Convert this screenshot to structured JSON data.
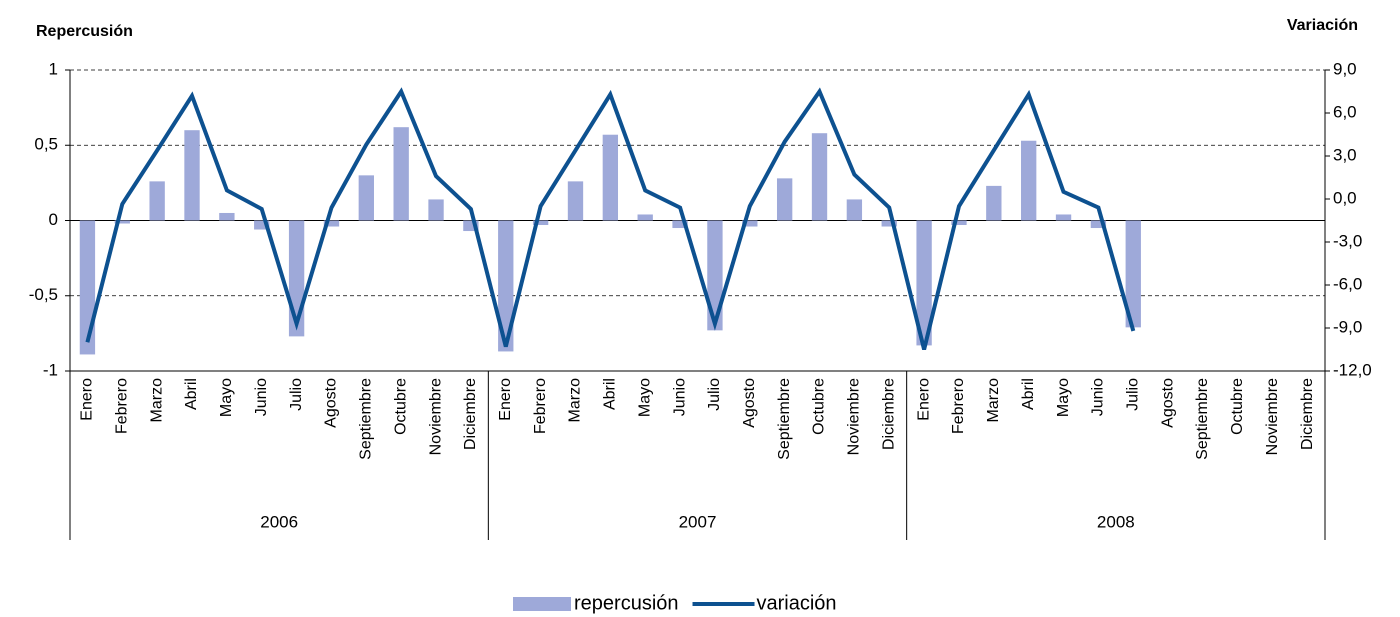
{
  "chart_data": {
    "type": "combo",
    "y_title": "Repercusión",
    "y2_title": "Variación",
    "categories": [
      "Enero",
      "Febrero",
      "Marzo",
      "Abril",
      "Mayo",
      "Junio",
      "Julio",
      "Agosto",
      "Septiembre",
      "Octubre",
      "Noviembre",
      "Diciembre",
      "Enero",
      "Febrero",
      "Marzo",
      "Abril",
      "Mayo",
      "Junio",
      "Julio",
      "Agosto",
      "Septiembre",
      "Octubre",
      "Noviembre",
      "Diciembre",
      "Enero",
      "Febrero",
      "Marzo",
      "Abril",
      "Mayo",
      "Junio",
      "Julio",
      "Agosto",
      "Septiembre",
      "Octubre",
      "Noviembre",
      "Diciembre"
    ],
    "x_groups": [
      "2006",
      "2007",
      "2008"
    ],
    "series": [
      {
        "name": "repercusión",
        "type": "bar",
        "color": "#9ea9d9",
        "values": [
          -0.89,
          -0.02,
          0.26,
          0.6,
          0.05,
          -0.06,
          -0.77,
          -0.04,
          0.3,
          0.62,
          0.14,
          -0.07,
          -0.87,
          -0.03,
          0.26,
          0.57,
          0.04,
          -0.05,
          -0.73,
          -0.04,
          0.28,
          0.58,
          0.14,
          -0.04,
          -0.83,
          -0.03,
          0.23,
          0.53,
          0.04,
          -0.05,
          -0.71,
          null,
          null,
          null,
          null,
          null
        ]
      },
      {
        "name": "variación",
        "type": "line",
        "axis": "y2",
        "color": "#0d5190",
        "values": [
          -10.0,
          -0.35,
          3.4,
          7.2,
          0.6,
          -0.7,
          -8.7,
          -0.6,
          3.8,
          7.5,
          1.6,
          -0.7,
          -10.3,
          -0.5,
          3.4,
          7.3,
          0.6,
          -0.6,
          -8.7,
          -0.5,
          4.0,
          7.5,
          1.7,
          -0.6,
          -10.5,
          -0.5,
          3.4,
          7.3,
          0.5,
          -0.6,
          -9.2,
          null,
          null,
          null,
          null,
          null
        ]
      }
    ],
    "ylim": [
      -1,
      1
    ],
    "yticks": [
      1,
      {
        "value": 0.5,
        "label": "0,5"
      },
      0,
      {
        "value": -0.5,
        "label": "-0,5"
      },
      -1
    ],
    "y2lim": [
      -12,
      9
    ],
    "y2ticks": [
      {
        "value": 9,
        "label": "9,0"
      },
      {
        "value": 6,
        "label": "6,0"
      },
      {
        "value": 3,
        "label": "3,0"
      },
      {
        "value": 0,
        "label": "0,0"
      },
      {
        "value": -3,
        "label": "-3,0"
      },
      {
        "value": -6,
        "label": "-6,0"
      },
      {
        "value": -9,
        "label": "-9,0"
      },
      {
        "value": -12,
        "label": "-12,0"
      }
    ],
    "grid": true,
    "legend": "bottom"
  }
}
